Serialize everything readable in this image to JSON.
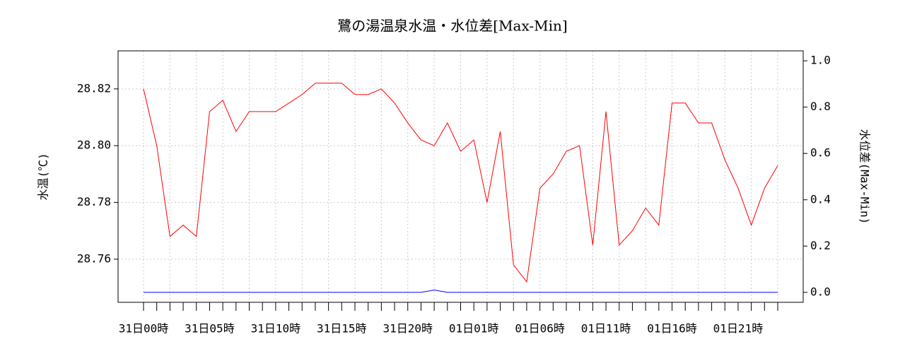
{
  "chart_data": {
    "type": "line",
    "title": "鷺の湯温泉水温・水位差[Max-Min]",
    "y_label": "水温(℃)",
    "y2_label": "水位差(Max-Min)",
    "categories": [
      "31日00時",
      null,
      null,
      null,
      null,
      "31日05時",
      null,
      null,
      null,
      null,
      "31日10時",
      null,
      null,
      null,
      null,
      "31日15時",
      null,
      null,
      null,
      null,
      "31日20時",
      null,
      null,
      null,
      null,
      "01日01時",
      null,
      null,
      null,
      null,
      "01日06時",
      null,
      null,
      null,
      null,
      "01日11時",
      null,
      null,
      null,
      null,
      "01日16時",
      null,
      null,
      null,
      null,
      "01日21時",
      null,
      null,
      null
    ],
    "series": [
      {
        "name": "水温",
        "color": "#ff0000",
        "axis": "y",
        "values": [
          28.82,
          28.8,
          28.768,
          28.772,
          28.768,
          28.812,
          28.816,
          28.805,
          28.812,
          28.812,
          28.812,
          28.815,
          28.818,
          28.822,
          28.822,
          28.822,
          28.818,
          28.818,
          28.82,
          28.815,
          28.808,
          28.802,
          28.8,
          28.808,
          28.798,
          28.802,
          28.78,
          28.805,
          28.758,
          28.752,
          28.785,
          28.79,
          28.798,
          28.8,
          28.765,
          28.812,
          28.765,
          28.77,
          28.778,
          28.772,
          28.815,
          28.815,
          28.808,
          28.808,
          28.795,
          28.785,
          28.772,
          28.785,
          28.793
        ]
      },
      {
        "name": "水位差",
        "color": "#0000ff",
        "axis": "y2",
        "values": [
          0,
          0,
          0,
          0,
          0,
          0,
          0,
          0,
          0,
          0,
          0,
          0,
          0,
          0,
          0,
          0,
          0,
          0,
          0,
          0,
          0,
          0,
          0.01,
          0,
          0,
          0,
          0,
          0,
          0,
          0,
          0,
          0,
          0,
          0,
          0,
          0,
          0,
          0,
          0,
          0,
          0,
          0,
          0,
          0,
          0,
          0,
          0,
          0,
          0
        ]
      }
    ],
    "ylim": [
      28.7448,
      28.8334
    ],
    "yticks": [
      {
        "value": 28.76,
        "label": "28.76"
      },
      {
        "value": 28.78,
        "label": "28.78"
      },
      {
        "value": 28.8,
        "label": "28.80"
      },
      {
        "value": 28.82,
        "label": "28.82"
      }
    ],
    "y2lim": [
      -0.043,
      1.043
    ],
    "y2ticks": [
      {
        "value": 0,
        "label": "0.0"
      },
      {
        "value": 0.2,
        "label": "0.2"
      },
      {
        "value": 0.4,
        "label": "0.4"
      },
      {
        "value": 0.6,
        "label": "0.6"
      },
      {
        "value": 0.8,
        "label": "0.8"
      },
      {
        "value": 1,
        "label": "1.0"
      }
    ],
    "grid": true
  }
}
